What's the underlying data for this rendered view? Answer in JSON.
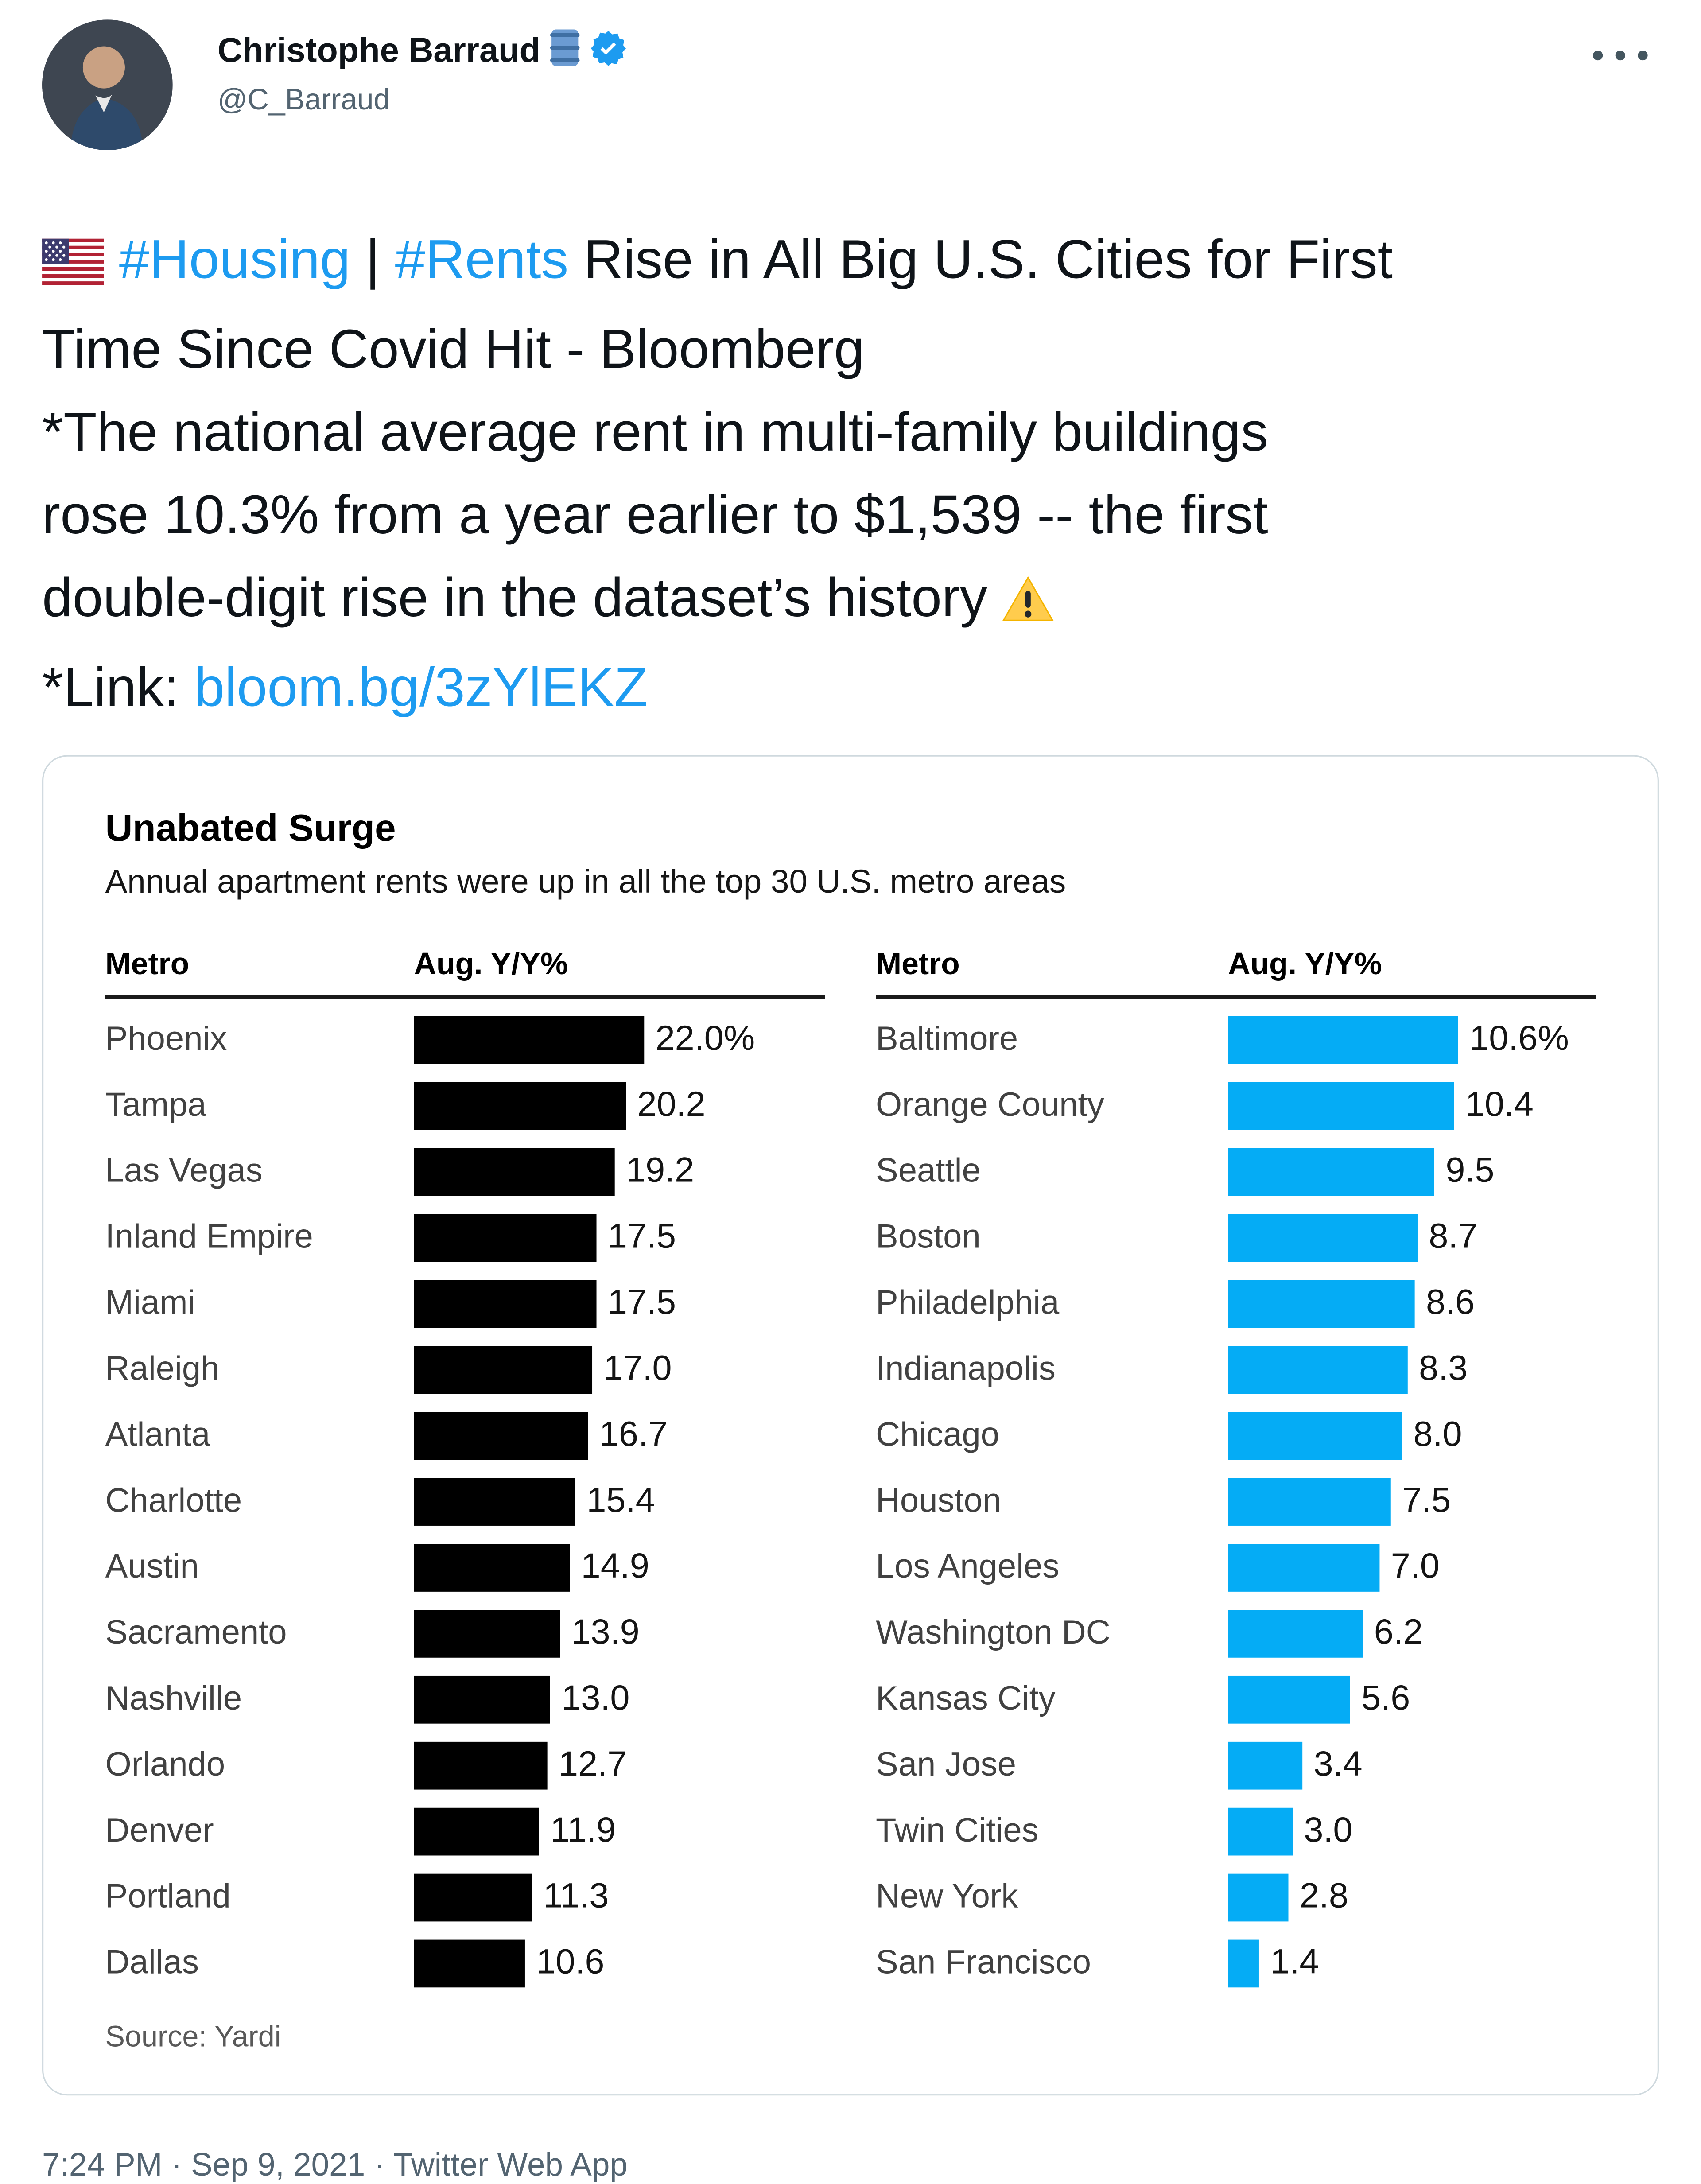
{
  "header": {
    "display_name": "Christophe Barraud",
    "handle": "@C_Barraud",
    "more_label": "more-options"
  },
  "tweet": {
    "lines": [
      [
        {
          "t": "emoji",
          "name": "us-flag"
        },
        {
          "t": "text",
          "v": " "
        },
        {
          "t": "hashtag",
          "v": "#Housing"
        },
        {
          "t": "text",
          "v": " | "
        },
        {
          "t": "hashtag",
          "v": "#Rents"
        },
        {
          "t": "text",
          "v": " Rise in All Big U.S. Cities for First"
        }
      ],
      [
        {
          "t": "text",
          "v": "Time Since Covid Hit - Bloomberg"
        }
      ],
      [
        {
          "t": "text",
          "v": "*The national average rent in multi-family buildings"
        }
      ],
      [
        {
          "t": "text",
          "v": "rose 10.3% from a year earlier to $1,539 -- the first"
        }
      ],
      [
        {
          "t": "text",
          "v": "double-digit rise in the dataset’s history "
        },
        {
          "t": "emoji",
          "name": "warning"
        }
      ],
      [
        {
          "t": "text",
          "v": "*Link: "
        },
        {
          "t": "link",
          "v": "bloom.bg/3zYlEKZ"
        }
      ]
    ]
  },
  "chart_data": {
    "type": "bar",
    "title": "Unabated Surge",
    "subtitle": "Annual apartment rents were up in all the top 30 U.S. metro areas",
    "source": "Source: Yardi",
    "unit": "percent year-over-year, Aug.",
    "legend_position": "none",
    "grid": false,
    "columns": [
      {
        "metro_header": "Metro",
        "value_header": "Aug. Y/Y%",
        "bar_color": "#000000",
        "axis_max": 22.0,
        "rows": [
          {
            "metro": "Phoenix",
            "value": 22.0,
            "label": "22.0%"
          },
          {
            "metro": "Tampa",
            "value": 20.2,
            "label": "20.2"
          },
          {
            "metro": "Las Vegas",
            "value": 19.2,
            "label": "19.2"
          },
          {
            "metro": "Inland Empire",
            "value": 17.5,
            "label": "17.5"
          },
          {
            "metro": "Miami",
            "value": 17.5,
            "label": "17.5"
          },
          {
            "metro": "Raleigh",
            "value": 17.0,
            "label": "17.0"
          },
          {
            "metro": "Atlanta",
            "value": 16.7,
            "label": "16.7"
          },
          {
            "metro": "Charlotte",
            "value": 15.4,
            "label": "15.4"
          },
          {
            "metro": "Austin",
            "value": 14.9,
            "label": "14.9"
          },
          {
            "metro": "Sacramento",
            "value": 13.9,
            "label": "13.9"
          },
          {
            "metro": "Nashville",
            "value": 13.0,
            "label": "13.0"
          },
          {
            "metro": "Orlando",
            "value": 12.7,
            "label": "12.7"
          },
          {
            "metro": "Denver",
            "value": 11.9,
            "label": "11.9"
          },
          {
            "metro": "Portland",
            "value": 11.3,
            "label": "11.3"
          },
          {
            "metro": "Dallas",
            "value": 10.6,
            "label": "10.6"
          }
        ]
      },
      {
        "metro_header": "Metro",
        "value_header": "Aug. Y/Y%",
        "bar_color": "#05acf5",
        "axis_max": 10.6,
        "rows": [
          {
            "metro": "Baltimore",
            "value": 10.6,
            "label": "10.6%"
          },
          {
            "metro": "Orange County",
            "value": 10.4,
            "label": "10.4"
          },
          {
            "metro": "Seattle",
            "value": 9.5,
            "label": "9.5"
          },
          {
            "metro": "Boston",
            "value": 8.7,
            "label": "8.7"
          },
          {
            "metro": "Philadelphia",
            "value": 8.6,
            "label": "8.6"
          },
          {
            "metro": "Indianapolis",
            "value": 8.3,
            "label": "8.3"
          },
          {
            "metro": "Chicago",
            "value": 8.0,
            "label": "8.0"
          },
          {
            "metro": "Houston",
            "value": 7.5,
            "label": "7.5"
          },
          {
            "metro": "Los Angeles",
            "value": 7.0,
            "label": "7.0"
          },
          {
            "metro": "Washington DC",
            "value": 6.2,
            "label": "6.2"
          },
          {
            "metro": "Kansas City",
            "value": 5.6,
            "label": "5.6"
          },
          {
            "metro": "San Jose",
            "value": 3.4,
            "label": "3.4"
          },
          {
            "metro": "Twin Cities",
            "value": 3.0,
            "label": "3.0"
          },
          {
            "metro": "New York",
            "value": 2.8,
            "label": "2.8"
          },
          {
            "metro": "San Francisco",
            "value": 1.4,
            "label": "1.4"
          }
        ]
      }
    ]
  },
  "footer": {
    "timestamp": "7:24 PM · Sep 9, 2021 · Twitter Web App"
  },
  "colors": {
    "accent_blue": "#1d9bf0",
    "bar_black": "#000000",
    "bar_blue": "#05acf5",
    "text_primary": "#0f1419",
    "text_secondary": "#536471",
    "card_border": "#cfd9de"
  }
}
